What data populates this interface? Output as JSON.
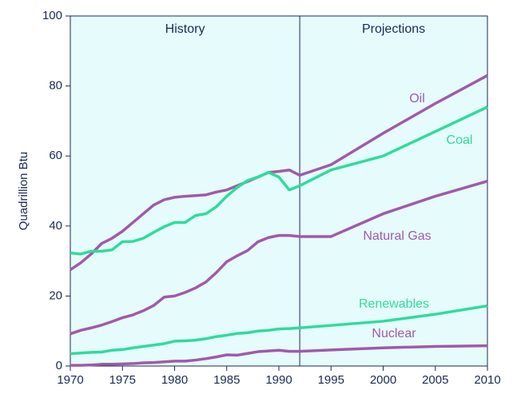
{
  "chart_data": {
    "type": "line",
    "y_label": "Quadrillion Btu",
    "annotations": [
      "History",
      "Projections"
    ],
    "divider_x": 1992,
    "x": [
      1970,
      1971,
      1972,
      1973,
      1974,
      1975,
      1976,
      1977,
      1978,
      1979,
      1980,
      1981,
      1982,
      1983,
      1984,
      1985,
      1986,
      1987,
      1988,
      1989,
      1990,
      1991,
      1992,
      1995,
      2000,
      2005,
      2010
    ],
    "series": [
      {
        "name": "Oil",
        "color": "#a05aaa",
        "values": [
          27.5,
          29.5,
          32,
          35,
          36.5,
          38.5,
          41,
          43.5,
          46,
          47.5,
          48.2,
          48.5,
          48.7,
          48.9,
          49.7,
          50.3,
          51.5,
          52.7,
          54,
          55.3,
          55.6,
          56,
          54.5,
          57.5,
          66.5,
          75,
          83
        ]
      },
      {
        "name": "Coal",
        "color": "#2ddc9c",
        "values": [
          32.3,
          32,
          32.8,
          32.8,
          33.2,
          35.5,
          35.6,
          36.5,
          38.2,
          39.8,
          41,
          41,
          43,
          43.5,
          45.5,
          48.5,
          51,
          53,
          54,
          55.3,
          54,
          50.3,
          51.5,
          56,
          60,
          67,
          74
        ]
      },
      {
        "name": "Natural Gas",
        "color": "#a05aaa",
        "values": [
          9.2,
          10.2,
          10.9,
          11.7,
          12.7,
          13.8,
          14.6,
          15.8,
          17.3,
          19.7,
          20,
          21,
          22.3,
          24,
          26.7,
          29.8,
          31.5,
          33,
          35.5,
          36.7,
          37.3,
          37.3,
          37,
          37,
          43.5,
          48.5,
          52.8
        ]
      },
      {
        "name": "Renewables",
        "color": "#2ddc9c",
        "values": [
          3.5,
          3.7,
          3.9,
          4.0,
          4.5,
          4.7,
          5.2,
          5.6,
          6.0,
          6.4,
          7.1,
          7.2,
          7.4,
          7.8,
          8.4,
          8.8,
          9.3,
          9.5,
          10.0,
          10.2,
          10.6,
          10.7,
          10.9,
          11.6,
          12.8,
          14.8,
          17.2
        ]
      },
      {
        "name": "Nuclear",
        "color": "#a05aaa",
        "values": [
          0.2,
          0.2,
          0.3,
          0.5,
          0.5,
          0.6,
          0.7,
          0.9,
          1.0,
          1.2,
          1.4,
          1.4,
          1.7,
          2.1,
          2.6,
          3.2,
          3.1,
          3.6,
          4.1,
          4.3,
          4.5,
          4.2,
          4.2,
          4.6,
          5.2,
          5.6,
          5.8
        ]
      }
    ],
    "xlim": [
      1970,
      2010
    ],
    "xticks": [
      1970,
      1975,
      1980,
      1985,
      1990,
      1995,
      2000,
      2005,
      2010
    ],
    "ylim": [
      0,
      100
    ],
    "yticks": [
      0,
      20,
      40,
      60,
      80,
      100
    ],
    "background": "#e6fbfb"
  }
}
